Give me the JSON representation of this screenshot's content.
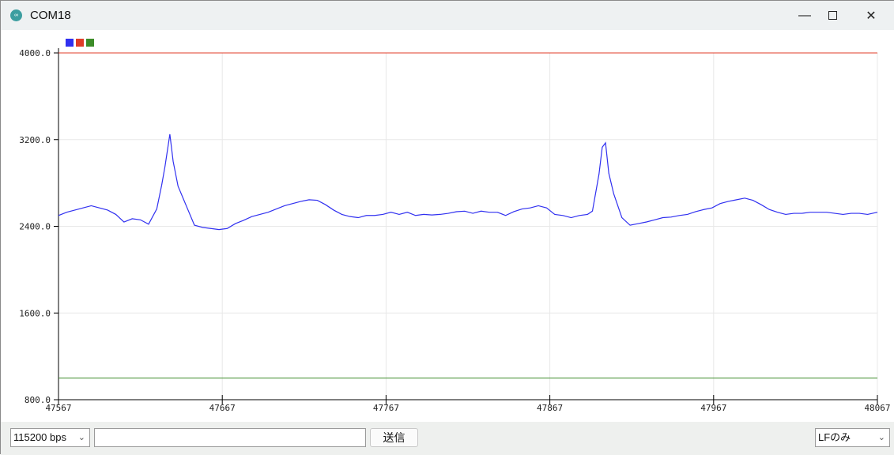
{
  "window": {
    "title": "COM18",
    "icon": "arduino-icon",
    "controls": [
      "minimize-icon",
      "maximize-icon",
      "close-icon"
    ]
  },
  "bottom": {
    "baud": "115200 bps",
    "input_value": "",
    "send_label": "送信",
    "line_ending": "LFのみ"
  },
  "chart_data": {
    "type": "line",
    "xlim": [
      47567,
      48067
    ],
    "ylim": [
      800,
      4000
    ],
    "x_ticks": [
      "47567",
      "47667",
      "47767",
      "47867",
      "47967",
      "48067"
    ],
    "y_ticks": [
      "4000.0",
      "3200.0",
      "2400.0",
      "1600.0",
      "800.0"
    ],
    "grid": true,
    "legend_placement": "top-left",
    "series": [
      {
        "color": "#3030f0",
        "points": [
          [
            47567,
            2500
          ],
          [
            47572,
            2530
          ],
          [
            47577,
            2550
          ],
          [
            47582,
            2570
          ],
          [
            47587,
            2590
          ],
          [
            47592,
            2570
          ],
          [
            47597,
            2550
          ],
          [
            47602,
            2510
          ],
          [
            47607,
            2440
          ],
          [
            47612,
            2470
          ],
          [
            47617,
            2460
          ],
          [
            47622,
            2420
          ],
          [
            47627,
            2560
          ],
          [
            47630,
            2780
          ],
          [
            47632,
            2950
          ],
          [
            47634,
            3150
          ],
          [
            47635,
            3250
          ],
          [
            47637,
            3000
          ],
          [
            47640,
            2770
          ],
          [
            47645,
            2590
          ],
          [
            47650,
            2410
          ],
          [
            47655,
            2390
          ],
          [
            47660,
            2380
          ],
          [
            47665,
            2370
          ],
          [
            47670,
            2380
          ],
          [
            47675,
            2425
          ],
          [
            47680,
            2455
          ],
          [
            47685,
            2490
          ],
          [
            47690,
            2510
          ],
          [
            47695,
            2530
          ],
          [
            47700,
            2560
          ],
          [
            47705,
            2590
          ],
          [
            47710,
            2610
          ],
          [
            47715,
            2630
          ],
          [
            47720,
            2645
          ],
          [
            47725,
            2640
          ],
          [
            47730,
            2600
          ],
          [
            47735,
            2550
          ],
          [
            47740,
            2510
          ],
          [
            47745,
            2490
          ],
          [
            47750,
            2480
          ],
          [
            47755,
            2500
          ],
          [
            47760,
            2500
          ],
          [
            47765,
            2510
          ],
          [
            47770,
            2530
          ],
          [
            47775,
            2510
          ],
          [
            47780,
            2530
          ],
          [
            47785,
            2500
          ],
          [
            47790,
            2510
          ],
          [
            47795,
            2505
          ],
          [
            47800,
            2510
          ],
          [
            47805,
            2520
          ],
          [
            47810,
            2535
          ],
          [
            47815,
            2540
          ],
          [
            47820,
            2520
          ],
          [
            47825,
            2540
          ],
          [
            47830,
            2530
          ],
          [
            47835,
            2530
          ],
          [
            47840,
            2500
          ],
          [
            47845,
            2535
          ],
          [
            47850,
            2560
          ],
          [
            47855,
            2570
          ],
          [
            47860,
            2590
          ],
          [
            47865,
            2570
          ],
          [
            47870,
            2510
          ],
          [
            47875,
            2500
          ],
          [
            47880,
            2480
          ],
          [
            47885,
            2500
          ],
          [
            47890,
            2510
          ],
          [
            47893,
            2540
          ],
          [
            47895,
            2710
          ],
          [
            47897,
            2880
          ],
          [
            47899,
            3130
          ],
          [
            47901,
            3170
          ],
          [
            47903,
            2890
          ],
          [
            47906,
            2700
          ],
          [
            47911,
            2480
          ],
          [
            47916,
            2410
          ],
          [
            47921,
            2425
          ],
          [
            47926,
            2440
          ],
          [
            47931,
            2460
          ],
          [
            47936,
            2480
          ],
          [
            47941,
            2485
          ],
          [
            47946,
            2500
          ],
          [
            47951,
            2510
          ],
          [
            47956,
            2535
          ],
          [
            47961,
            2555
          ],
          [
            47966,
            2570
          ],
          [
            47971,
            2610
          ],
          [
            47976,
            2630
          ],
          [
            47981,
            2645
          ],
          [
            47986,
            2660
          ],
          [
            47991,
            2640
          ],
          [
            47996,
            2600
          ],
          [
            48001,
            2555
          ],
          [
            48006,
            2530
          ],
          [
            48011,
            2510
          ],
          [
            48016,
            2520
          ],
          [
            48021,
            2520
          ],
          [
            48026,
            2530
          ],
          [
            48031,
            2530
          ],
          [
            48036,
            2530
          ],
          [
            48041,
            2520
          ],
          [
            48046,
            2510
          ],
          [
            48051,
            2520
          ],
          [
            48056,
            2520
          ],
          [
            48061,
            2510
          ],
          [
            48067,
            2530
          ]
        ]
      },
      {
        "color": "#e03c28",
        "constant": 4000
      },
      {
        "color": "#3c8c28",
        "constant": 1000
      }
    ]
  }
}
